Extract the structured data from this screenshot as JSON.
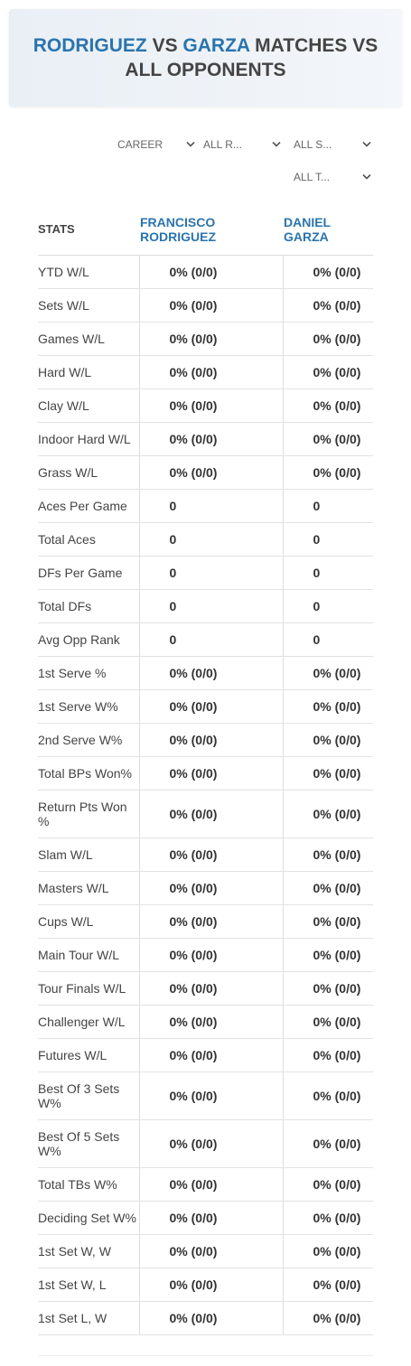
{
  "header": {
    "title": {
      "player1": "RODRIGUEZ",
      "vs": "VS",
      "player2": "GARZA",
      "rest": "MATCHES VS ALL OPPONENTS"
    }
  },
  "filters": [
    "CAREER",
    "ALL R...",
    "ALL S...",
    "ALL T..."
  ],
  "table": {
    "columns": [
      "STATS",
      "FRANCISCO RODRIGUEZ",
      "DANIEL GARZA"
    ],
    "rows": [
      [
        "YTD W/L",
        "0% (0/0)",
        "0% (0/0)"
      ],
      [
        "Sets W/L",
        "0% (0/0)",
        "0% (0/0)"
      ],
      [
        "Games W/L",
        "0% (0/0)",
        "0% (0/0)"
      ],
      [
        "Hard W/L",
        "0% (0/0)",
        "0% (0/0)"
      ],
      [
        "Clay W/L",
        "0% (0/0)",
        "0% (0/0)"
      ],
      [
        "Indoor Hard W/L",
        "0% (0/0)",
        "0% (0/0)"
      ],
      [
        "Grass W/L",
        "0% (0/0)",
        "0% (0/0)"
      ],
      [
        "Aces Per Game",
        "0",
        "0"
      ],
      [
        "Total Aces",
        "0",
        "0"
      ],
      [
        "DFs Per Game",
        "0",
        "0"
      ],
      [
        "Total DFs",
        "0",
        "0"
      ],
      [
        "Avg Opp Rank",
        "0",
        "0"
      ],
      [
        "1st Serve %",
        "0% (0/0)",
        "0% (0/0)"
      ],
      [
        "1st Serve W%",
        "0% (0/0)",
        "0% (0/0)"
      ],
      [
        "2nd Serve W%",
        "0% (0/0)",
        "0% (0/0)"
      ],
      [
        "Total BPs Won%",
        "0% (0/0)",
        "0% (0/0)"
      ],
      [
        "Return Pts Won %",
        "0% (0/0)",
        "0% (0/0)"
      ],
      [
        "Slam W/L",
        "0% (0/0)",
        "0% (0/0)"
      ],
      [
        "Masters W/L",
        "0% (0/0)",
        "0% (0/0)"
      ],
      [
        "Cups W/L",
        "0% (0/0)",
        "0% (0/0)"
      ],
      [
        "Main Tour W/L",
        "0% (0/0)",
        "0% (0/0)"
      ],
      [
        "Tour Finals W/L",
        "0% (0/0)",
        "0% (0/0)"
      ],
      [
        "Challenger W/L",
        "0% (0/0)",
        "0% (0/0)"
      ],
      [
        "Futures W/L",
        "0% (0/0)",
        "0% (0/0)"
      ],
      [
        "Best Of 3 Sets W%",
        "0% (0/0)",
        "0% (0/0)"
      ],
      [
        "Best Of 5 Sets W%",
        "0% (0/0)",
        "0% (0/0)"
      ],
      [
        "Total TBs W%",
        "0% (0/0)",
        "0% (0/0)"
      ],
      [
        "Deciding Set W%",
        "0% (0/0)",
        "0% (0/0)"
      ],
      [
        "1st Set W, W",
        "0% (0/0)",
        "0% (0/0)"
      ],
      [
        "1st Set W, L",
        "0% (0/0)",
        "0% (0/0)"
      ],
      [
        "1st Set L, W",
        "0% (0/0)",
        "0% (0/0)"
      ]
    ]
  }
}
